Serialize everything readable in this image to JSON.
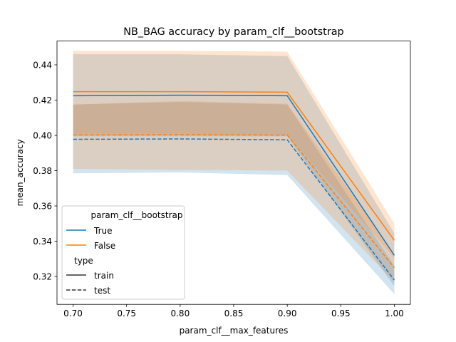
{
  "chart_data": {
    "type": "line",
    "title": "NB_BAG accuracy by param_clf__bootstrap",
    "xlabel": "param_clf__max_features",
    "ylabel": "mean_accuracy",
    "x": [
      0.7,
      0.8,
      0.9,
      1.0
    ],
    "xlim": [
      0.685,
      1.015
    ],
    "ylim": [
      0.3042,
      0.4535
    ],
    "xticks": [
      "0.70",
      "0.75",
      "0.80",
      "0.85",
      "0.90",
      "0.95",
      "1.00"
    ],
    "yticks": [
      "0.32",
      "0.34",
      "0.36",
      "0.38",
      "0.40",
      "0.42",
      "0.44"
    ],
    "grid": false,
    "legend": {
      "placement": "lower-left",
      "hue_title": "param_clf__bootstrap",
      "hue_entries": [
        "True",
        "False"
      ],
      "style_title": "type",
      "style_entries": [
        "train",
        "test"
      ]
    },
    "series": [
      {
        "bootstrap": "True",
        "type": "train",
        "color": "#1f77b4",
        "dash": "solid",
        "values": [
          0.4225,
          0.4228,
          0.4225,
          0.332
        ],
        "lower": [
          0.3995,
          0.3995,
          0.3995,
          0.3145
        ],
        "upper": [
          0.446,
          0.446,
          0.445,
          0.3445
        ]
      },
      {
        "bootstrap": "True",
        "type": "test",
        "color": "#1f77b4",
        "dash": "dashed",
        "values": [
          0.3978,
          0.398,
          0.3975,
          0.318
        ],
        "lower": [
          0.3785,
          0.379,
          0.3775,
          0.31
        ],
        "upper": [
          0.4175,
          0.419,
          0.4175,
          0.326
        ]
      },
      {
        "bootstrap": "False",
        "type": "train",
        "color": "#ff7f0e",
        "dash": "solid",
        "values": [
          0.4248,
          0.4248,
          0.4245,
          0.3405
        ],
        "lower": [
          0.401,
          0.401,
          0.4005,
          0.3305
        ],
        "upper": [
          0.448,
          0.448,
          0.4475,
          0.35
        ]
      },
      {
        "bootstrap": "False",
        "type": "test",
        "color": "#ff7f0e",
        "dash": "dashed",
        "values": [
          0.4003,
          0.4005,
          0.4002,
          0.325
        ],
        "lower": [
          0.381,
          0.3805,
          0.38,
          0.317
        ],
        "upper": [
          0.4175,
          0.4195,
          0.418,
          0.333
        ]
      }
    ]
  }
}
